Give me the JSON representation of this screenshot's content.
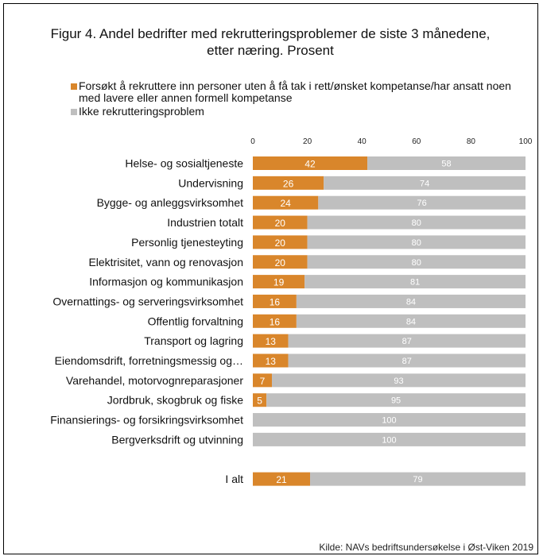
{
  "title": "Figur 4. Andel bedrifter med rekrutteringsproblemer de siste 3 månedene, etter næring. Prosent",
  "source": "Kilde: NAVs bedriftsundersøkelse i Øst-Viken 2019",
  "legend": [
    {
      "label": "Forsøkt å rekruttere inn personer uten å få tak i rett/ønsket kompetanse/har ansatt noen med lavere eller annen formell kompetanse",
      "color": "#d9862b"
    },
    {
      "label": "Ikke rekrutteringsproblem",
      "color": "#bfbfbf"
    }
  ],
  "chart_data": {
    "type": "bar",
    "orientation": "horizontal",
    "stacked": true,
    "title": "Figur 4. Andel bedrifter med rekrutteringsproblemer de siste 3 månedene, etter næring. Prosent",
    "xlim": [
      0,
      100
    ],
    "xticks": [
      0,
      20,
      40,
      60,
      80,
      100
    ],
    "legend_position": "top",
    "categories": [
      "Helse- og sosialtjeneste",
      "Undervisning",
      "Bygge- og anleggsvirksomhet",
      "Industrien totalt",
      "Personlig tjenesteyting",
      "Elektrisitet, vann og renovasjon",
      "Informasjon og kommunikasjon",
      "Overnattings- og serveringsvirksomhet",
      "Offentlig forvaltning",
      "Transport og lagring",
      "Eiendomsdrift, forretningsmessig og…",
      "Varehandel, motorvognreparasjoner",
      "Jordbruk, skogbruk og fiske",
      "Finansierings- og forsikringsvirksomhet",
      "Bergverksdrift og utvinning",
      "",
      "I alt"
    ],
    "series": [
      {
        "name": "Forsøkt å rekruttere inn personer uten å få tak i rett/ønsket kompetanse/har ansatt noen med lavere eller annen formell kompetanse",
        "color": "#d9862b",
        "values": [
          42,
          26,
          24,
          20,
          20,
          20,
          19,
          16,
          16,
          13,
          13,
          7,
          5,
          0,
          0,
          null,
          21
        ]
      },
      {
        "name": "Ikke rekrutteringsproblem",
        "color": "#bfbfbf",
        "values": [
          58,
          74,
          76,
          80,
          80,
          80,
          81,
          84,
          84,
          87,
          87,
          93,
          95,
          100,
          100,
          null,
          79
        ]
      }
    ]
  }
}
